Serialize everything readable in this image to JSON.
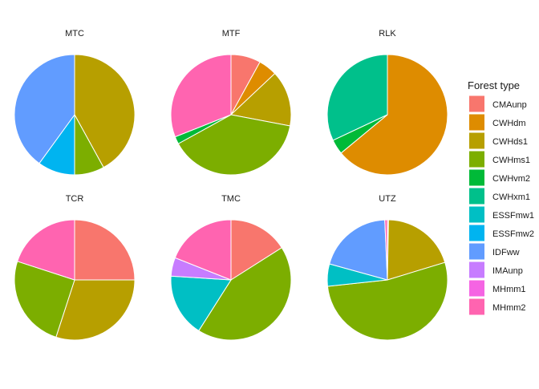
{
  "chart_data": {
    "type": "pie",
    "facet_layout": "3x2 grid",
    "background": "#ffffff",
    "slice_border_color": "#ffffff",
    "start_angle": "12 o'clock",
    "direction": "clockwise",
    "legend": {
      "title": "Forest type",
      "placement": "right",
      "items": [
        {
          "label": "CMAunp",
          "color": "#F8766D"
        },
        {
          "label": "CWHdm",
          "color": "#DE8C00"
        },
        {
          "label": "CWHds1",
          "color": "#B79F00"
        },
        {
          "label": "CWHms1",
          "color": "#7CAE00"
        },
        {
          "label": "CWHvm2",
          "color": "#00BA38"
        },
        {
          "label": "CWHxm1",
          "color": "#00C08B"
        },
        {
          "label": "ESSFmw1",
          "color": "#00BFC4"
        },
        {
          "label": "ESSFmw2",
          "color": "#00B4F0"
        },
        {
          "label": "IDFww",
          "color": "#619CFF"
        },
        {
          "label": "IMAunp",
          "color": "#C77CFF"
        },
        {
          "label": "MHmm1",
          "color": "#F564E3"
        },
        {
          "label": "MHmm2",
          "color": "#FF64B0"
        }
      ]
    },
    "panels": [
      {
        "title": "MTC",
        "slices": [
          {
            "type": "CWHds1",
            "value": 42
          },
          {
            "type": "CWHms1",
            "value": 8
          },
          {
            "type": "ESSFmw2",
            "value": 10
          },
          {
            "type": "IDFww",
            "value": 40
          }
        ]
      },
      {
        "title": "MTF",
        "slices": [
          {
            "type": "CMAunp",
            "value": 8
          },
          {
            "type": "CWHdm",
            "value": 5
          },
          {
            "type": "CWHds1",
            "value": 15
          },
          {
            "type": "CWHms1",
            "value": 39
          },
          {
            "type": "CWHvm2",
            "value": 2
          },
          {
            "type": "MHmm2",
            "value": 31
          }
        ]
      },
      {
        "title": "RLK",
        "slices": [
          {
            "type": "CWHdm",
            "value": 64
          },
          {
            "type": "CWHvm2",
            "value": 4
          },
          {
            "type": "CWHxm1",
            "value": 32
          }
        ]
      },
      {
        "title": "TCR",
        "slices": [
          {
            "type": "CMAunp",
            "value": 25
          },
          {
            "type": "CWHds1",
            "value": 30
          },
          {
            "type": "CWHms1",
            "value": 25
          },
          {
            "type": "MHmm2",
            "value": 20
          }
        ]
      },
      {
        "title": "TMC",
        "slices": [
          {
            "type": "CMAunp",
            "value": 16
          },
          {
            "type": "CWHms1",
            "value": 43
          },
          {
            "type": "ESSFmw1",
            "value": 17
          },
          {
            "type": "IMAunp",
            "value": 5
          },
          {
            "type": "MHmm2",
            "value": 19
          }
        ]
      },
      {
        "title": "UTZ",
        "slices": [
          {
            "type": "CMAunp",
            "value": 0.3
          },
          {
            "type": "CWHds1",
            "value": 20
          },
          {
            "type": "CWHms1",
            "value": 53
          },
          {
            "type": "ESSFmw1",
            "value": 6
          },
          {
            "type": "IDFww",
            "value": 20
          },
          {
            "type": "MHmm2",
            "value": 0.7
          }
        ]
      }
    ]
  }
}
